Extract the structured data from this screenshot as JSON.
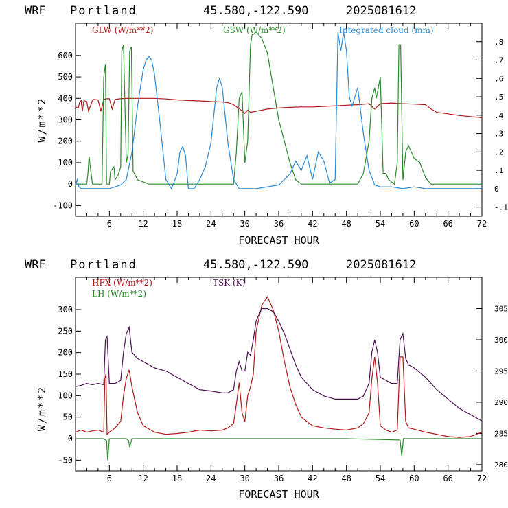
{
  "chart_data": [
    {
      "type": "line",
      "header": {
        "model": "WRF",
        "location": "Portland",
        "coords": "45.580,-122.590",
        "init": "2025081612"
      },
      "xlabel": "FORECAST HOUR",
      "ylabel": "W/m**2",
      "xlim": [
        0,
        72
      ],
      "ylim": [
        -150,
        750
      ],
      "xticks": [
        6,
        12,
        18,
        24,
        30,
        36,
        42,
        48,
        54,
        60,
        66,
        72
      ],
      "yticks": [
        -100,
        0,
        100,
        200,
        300,
        400,
        500,
        600
      ],
      "y2lim": [
        -0.15,
        0.9
      ],
      "y2ticks": [
        -0.1,
        0,
        0.1,
        0.2,
        0.3,
        0.4,
        0.5,
        0.6,
        0.7,
        0.8
      ],
      "y2ticklabels": [
        "-.1",
        "0",
        ".1",
        ".2",
        ".3",
        ".4",
        ".5",
        ".6",
        ".7",
        ".8"
      ],
      "series": [
        {
          "name": "GLW (W/m**2)",
          "color": "#b01818",
          "axis": "left",
          "x": [
            0,
            0.5,
            0.7,
            1,
            1.2,
            1.5,
            2,
            2.3,
            3,
            3.3,
            4,
            4.5,
            5,
            5.5,
            6,
            6.5,
            7,
            8,
            9,
            10,
            12,
            14,
            16,
            18,
            20,
            22,
            24,
            26,
            27,
            28,
            29,
            30,
            30.5,
            31,
            32,
            34,
            36,
            38,
            40,
            42,
            44,
            46,
            48,
            50,
            52,
            53,
            54,
            56,
            58,
            60,
            62,
            63,
            64,
            66,
            68,
            70,
            72
          ],
          "values": [
            360,
            355,
            380,
            390,
            340,
            390,
            385,
            340,
            390,
            395,
            392,
            340,
            395,
            398,
            398,
            350,
            395,
            398,
            400,
            400,
            400,
            400,
            397,
            393,
            390,
            388,
            385,
            383,
            380,
            370,
            352,
            330,
            345,
            335,
            340,
            350,
            355,
            358,
            360,
            360,
            362,
            365,
            368,
            370,
            375,
            350,
            375,
            378,
            375,
            373,
            370,
            350,
            335,
            328,
            320,
            315,
            310
          ]
        },
        {
          "name": "GSW (W/m**2)",
          "color": "#2a8a2a",
          "axis": "left",
          "x": [
            0,
            2,
            2.2,
            2.4,
            3,
            4.7,
            5,
            5.3,
            5.5,
            6,
            6.2,
            6.8,
            7,
            7.5,
            8,
            8.2,
            8.5,
            9,
            9.3,
            9.6,
            9.9,
            10.2,
            11,
            13,
            15,
            17,
            18,
            20,
            22,
            24,
            26,
            28,
            28.5,
            29,
            29.5,
            30,
            30.5,
            31,
            31.3,
            31.6,
            32,
            33,
            34,
            36,
            38,
            39,
            40,
            41,
            42,
            44,
            46,
            48,
            50,
            51,
            52,
            52.5,
            53,
            53.3,
            54,
            54.5,
            55,
            55.5,
            56,
            56.5,
            57,
            57.3,
            57.6,
            58,
            58.5,
            59,
            60,
            61,
            62,
            63,
            64,
            66,
            72
          ],
          "values": [
            0,
            0,
            50,
            130,
            0,
            0,
            500,
            560,
            0,
            0,
            60,
            80,
            20,
            40,
            80,
            620,
            650,
            100,
            140,
            620,
            640,
            60,
            20,
            0,
            0,
            0,
            0,
            0,
            0,
            0,
            0,
            0,
            150,
            400,
            430,
            100,
            200,
            650,
            700,
            700,
            710,
            680,
            610,
            300,
            100,
            20,
            0,
            0,
            0,
            0,
            0,
            0,
            0,
            50,
            200,
            400,
            450,
            400,
            500,
            50,
            50,
            20,
            10,
            0,
            100,
            650,
            650,
            20,
            150,
            180,
            120,
            100,
            30,
            0,
            0,
            0,
            0
          ]
        },
        {
          "name": "Integrated cloud (mm)",
          "color": "#2a8ad6",
          "axis": "right",
          "x": [
            0,
            0.3,
            0.6,
            1,
            1.5,
            2,
            3,
            4,
            5,
            6,
            7,
            8,
            9,
            10,
            11,
            12,
            12.5,
            13,
            13.5,
            14,
            15,
            16,
            17,
            18,
            18.5,
            19,
            19.5,
            20,
            21,
            22,
            23,
            24,
            25,
            25.5,
            26,
            27,
            28,
            29,
            30,
            31,
            32,
            34,
            36,
            37,
            38,
            39,
            40,
            41,
            42,
            43,
            44,
            45,
            46,
            46.5,
            47,
            47.5,
            48,
            48.5,
            49,
            50,
            51,
            52,
            53,
            54,
            56,
            58,
            60,
            62,
            64,
            66,
            72
          ],
          "values": [
            0.02,
            0.05,
            0.01,
            0,
            0,
            0,
            0,
            0,
            0,
            0,
            0.01,
            0.02,
            0.05,
            0.2,
            0.45,
            0.65,
            0.7,
            0.72,
            0.7,
            0.62,
            0.35,
            0.05,
            0,
            0.08,
            0.2,
            0.23,
            0.18,
            0,
            0,
            0.05,
            0.12,
            0.25,
            0.55,
            0.6,
            0.55,
            0.25,
            0.05,
            0,
            0,
            0,
            0,
            0.01,
            0.02,
            0.05,
            0.08,
            0.15,
            0.1,
            0.18,
            0.05,
            0.2,
            0.15,
            0.03,
            0.05,
            0.85,
            0.75,
            0.85,
            0.75,
            0.5,
            0.45,
            0.55,
            0.3,
            0.1,
            0.02,
            0.01,
            0.01,
            0,
            0.01,
            0,
            0,
            0,
            0
          ]
        }
      ]
    },
    {
      "type": "line",
      "header": {
        "model": "WRF",
        "location": "Portland",
        "coords": "45.580,-122.590",
        "init": "2025081612"
      },
      "xlabel": "FORECAST HOUR",
      "ylabel": "W/m**2",
      "xlim": [
        0,
        72
      ],
      "ylim": [
        -75,
        375
      ],
      "xticks": [
        6,
        12,
        18,
        24,
        30,
        36,
        42,
        48,
        54,
        60,
        66,
        72
      ],
      "yticks": [
        -50,
        0,
        50,
        100,
        150,
        200,
        250,
        300
      ],
      "y2lim": [
        279,
        310
      ],
      "y2ticks": [
        280,
        285,
        290,
        295,
        300,
        305
      ],
      "y2ticklabels": [
        "280",
        "285",
        "290",
        "295",
        "300",
        "305"
      ],
      "series": [
        {
          "name": "HFX (W/m**2)",
          "color": "#b01818",
          "axis": "left",
          "x": [
            0,
            1,
            2,
            3,
            4,
            5,
            5.2,
            5.4,
            5.6,
            6,
            7,
            8,
            8.5,
            9,
            9.5,
            10,
            11,
            12,
            14,
            16,
            18,
            20,
            22,
            24,
            26,
            27,
            28,
            28.5,
            29,
            29.5,
            30,
            30.5,
            31,
            31.5,
            32,
            33,
            34,
            35,
            36,
            37,
            38,
            39,
            40,
            42,
            44,
            46,
            48,
            50,
            51,
            52,
            52.5,
            53,
            53.5,
            54,
            55,
            56,
            57,
            57.5,
            58,
            58.5,
            59,
            60,
            62,
            64,
            66,
            68,
            70,
            72
          ],
          "values": [
            15,
            20,
            15,
            18,
            20,
            15,
            140,
            150,
            10,
            15,
            25,
            40,
            100,
            140,
            160,
            120,
            60,
            30,
            15,
            10,
            12,
            15,
            20,
            18,
            20,
            25,
            35,
            80,
            130,
            60,
            40,
            100,
            120,
            150,
            250,
            310,
            330,
            300,
            250,
            180,
            120,
            80,
            50,
            30,
            25,
            22,
            20,
            25,
            35,
            60,
            140,
            190,
            130,
            30,
            20,
            15,
            20,
            190,
            190,
            40,
            25,
            22,
            15,
            10,
            5,
            3,
            5,
            15
          ]
        },
        {
          "name": "LH (W/m**2)",
          "color": "#2a8a2a",
          "axis": "left",
          "x": [
            0,
            5,
            5.5,
            5.7,
            6,
            9,
            9.4,
            9.6,
            10,
            24,
            36,
            48,
            57.5,
            57.8,
            58.1,
            60,
            72
          ],
          "values": [
            0,
            0,
            -5,
            -50,
            0,
            0,
            -5,
            -20,
            0,
            0,
            0,
            0,
            -3,
            -40,
            0,
            0,
            0
          ]
        },
        {
          "name": "TSK (K)",
          "color": "#4a1050",
          "axis": "right",
          "x": [
            0,
            1,
            2,
            3,
            4,
            5,
            5.3,
            5.6,
            6,
            7,
            8,
            8.5,
            9,
            9.5,
            10,
            11,
            12,
            14,
            16,
            18,
            20,
            22,
            24,
            26,
            27,
            28,
            28.5,
            29,
            29.5,
            30,
            30.5,
            31,
            31.5,
            32,
            33,
            34,
            35,
            36,
            37,
            38,
            39,
            40,
            42,
            44,
            46,
            48,
            50,
            51,
            52,
            52.5,
            53,
            53.5,
            54,
            55,
            56,
            57,
            57.5,
            58,
            58.5,
            59,
            60,
            62,
            64,
            66,
            68,
            70,
            72
          ],
          "values": [
            292.5,
            292.7,
            293,
            292.8,
            293,
            292.8,
            300,
            300.5,
            293,
            293,
            293.5,
            298,
            301,
            302,
            298,
            297,
            296.5,
            295.5,
            295,
            294,
            293,
            292,
            291.8,
            291.5,
            291.5,
            292,
            295,
            296.5,
            295,
            295,
            298,
            297.5,
            300,
            303,
            305,
            305,
            304.5,
            303,
            301,
            298.5,
            296,
            294,
            292,
            291,
            290.5,
            290.5,
            290.5,
            291,
            293,
            298,
            300,
            298,
            294,
            293.5,
            293,
            293,
            300,
            301,
            297,
            296,
            295.5,
            294,
            292,
            290.5,
            289,
            288,
            287
          ]
        }
      ]
    }
  ]
}
